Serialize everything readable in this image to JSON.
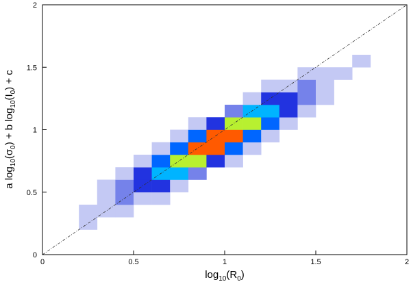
{
  "chart_data": {
    "type": "heatmap",
    "xlabel": [
      "log",
      "10",
      "(R",
      "0",
      ")"
    ],
    "ylabel": [
      "a log",
      "10",
      "(σ",
      "0",
      ") + b log",
      "10",
      "(I",
      "0",
      ") + c"
    ],
    "xlim": [
      0,
      2
    ],
    "ylim": [
      0,
      2
    ],
    "xticks": [
      0,
      0.5,
      1,
      1.5,
      2
    ],
    "yticks": [
      0,
      0.5,
      1,
      1.5,
      2
    ],
    "xbins": [
      0,
      0.1,
      0.2,
      0.3,
      0.4,
      0.5,
      0.6,
      0.7,
      0.8,
      0.9,
      1,
      1.1,
      1.2,
      1.3,
      1.4,
      1.5,
      1.6,
      1.7,
      1.8,
      1.9,
      2
    ],
    "ybins": [
      0,
      0.1,
      0.2,
      0.3,
      0.4,
      0.5,
      0.6,
      0.7,
      0.8,
      0.9,
      1,
      1.1,
      1.2,
      1.3,
      1.4,
      1.5,
      1.6,
      1.7,
      1.8,
      1.9,
      2
    ],
    "z": [
      [
        0,
        0,
        0,
        0,
        0,
        0,
        0,
        0,
        0,
        0,
        0,
        0,
        0,
        0,
        0,
        0,
        0,
        0,
        0,
        0
      ],
      [
        0,
        0,
        0,
        0,
        0,
        0,
        0,
        0,
        0,
        0,
        0,
        0,
        0,
        0,
        0,
        0,
        0,
        0,
        0,
        0
      ],
      [
        0,
        0,
        1,
        0,
        0,
        0,
        0,
        0,
        0,
        0,
        0,
        0,
        0,
        0,
        0,
        0,
        0,
        0,
        0,
        0
      ],
      [
        0,
        0,
        1,
        1,
        1,
        0,
        0,
        0,
        0,
        0,
        0,
        0,
        0,
        0,
        0,
        0,
        0,
        0,
        0,
        0
      ],
      [
        0,
        0,
        0,
        1,
        2,
        1,
        1,
        0,
        0,
        0,
        0,
        0,
        0,
        0,
        0,
        0,
        0,
        0,
        0,
        0
      ],
      [
        0,
        0,
        0,
        1,
        2,
        3,
        3,
        1,
        0,
        0,
        0,
        0,
        0,
        0,
        0,
        0,
        0,
        0,
        0,
        0
      ],
      [
        0,
        0,
        0,
        0,
        1,
        3,
        5,
        5,
        2,
        0,
        0,
        0,
        0,
        0,
        0,
        0,
        0,
        0,
        0,
        0
      ],
      [
        0,
        0,
        0,
        0,
        0,
        1,
        4,
        7,
        7,
        3,
        1,
        0,
        0,
        0,
        0,
        0,
        0,
        0,
        0,
        0
      ],
      [
        0,
        0,
        0,
        0,
        0,
        0,
        1,
        4,
        8,
        8,
        4,
        1,
        0,
        0,
        0,
        0,
        0,
        0,
        0,
        0
      ],
      [
        0,
        0,
        0,
        0,
        0,
        0,
        0,
        1,
        4,
        8,
        8,
        4,
        1,
        0,
        0,
        0,
        0,
        0,
        0,
        0
      ],
      [
        0,
        0,
        0,
        0,
        0,
        0,
        0,
        0,
        1,
        3,
        7,
        7,
        4,
        1,
        0,
        0,
        0,
        0,
        0,
        0
      ],
      [
        0,
        0,
        0,
        0,
        0,
        0,
        0,
        0,
        0,
        0,
        2,
        5,
        5,
        3,
        1,
        0,
        0,
        0,
        0,
        0
      ],
      [
        0,
        0,
        0,
        0,
        0,
        0,
        0,
        0,
        0,
        0,
        0,
        1,
        3,
        3,
        2,
        1,
        0,
        0,
        0,
        0
      ],
      [
        0,
        0,
        0,
        0,
        0,
        0,
        0,
        0,
        0,
        0,
        0,
        0,
        1,
        1,
        2,
        1,
        0,
        0,
        0,
        0
      ],
      [
        0,
        0,
        0,
        0,
        0,
        0,
        0,
        0,
        0,
        0,
        0,
        0,
        0,
        0,
        1,
        1,
        1,
        0,
        0,
        0
      ],
      [
        0,
        0,
        0,
        0,
        0,
        0,
        0,
        0,
        0,
        0,
        0,
        0,
        0,
        0,
        0,
        0,
        0,
        1,
        0,
        0
      ],
      [
        0,
        0,
        0,
        0,
        0,
        0,
        0,
        0,
        0,
        0,
        0,
        0,
        0,
        0,
        0,
        0,
        0,
        0,
        0,
        0
      ],
      [
        0,
        0,
        0,
        0,
        0,
        0,
        0,
        0,
        0,
        0,
        0,
        0,
        0,
        0,
        0,
        0,
        0,
        0,
        0,
        0
      ],
      [
        0,
        0,
        0,
        0,
        0,
        0,
        0,
        0,
        0,
        0,
        0,
        0,
        0,
        0,
        0,
        0,
        0,
        0,
        0,
        0
      ],
      [
        0,
        0,
        0,
        0,
        0,
        0,
        0,
        0,
        0,
        0,
        0,
        0,
        0,
        0,
        0,
        0,
        0,
        0,
        0,
        0
      ]
    ],
    "colors": [
      "#ffffff",
      "#c4c9f4",
      "#7582ea",
      "#2233e0",
      "#0066ff",
      "#00b4ff",
      "#30e8b0",
      "#b8f030",
      "#ff5a00"
    ],
    "diagonal": {
      "x": [
        0,
        2
      ],
      "y": [
        0,
        2
      ],
      "color": "#333333"
    }
  }
}
